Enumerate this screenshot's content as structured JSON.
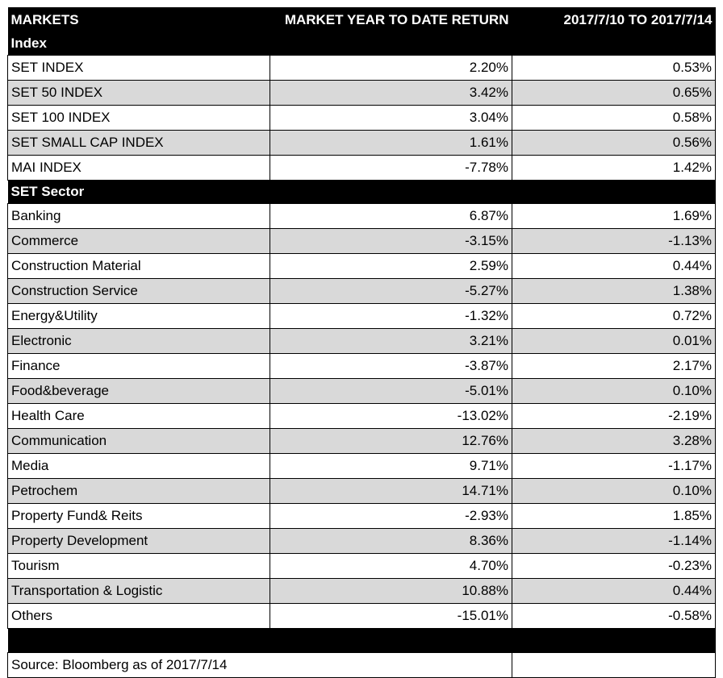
{
  "header": {
    "markets": "MARKETS",
    "ytd": "MARKET YEAR TO DATE RETURN",
    "week": "2017/7/10 TO 2017/7/14"
  },
  "sections": [
    {
      "title": "Index",
      "rows": [
        {
          "name": "SET INDEX",
          "ytd": "2.20%",
          "week": "0.53%"
        },
        {
          "name": "SET 50 INDEX",
          "ytd": "3.42%",
          "week": "0.65%"
        },
        {
          "name": "SET 100 INDEX",
          "ytd": "3.04%",
          "week": "0.58%"
        },
        {
          "name": "SET SMALL CAP INDEX",
          "ytd": "1.61%",
          "week": "0.56%"
        },
        {
          "name": "MAI INDEX",
          "ytd": "-7.78%",
          "week": "1.42%"
        }
      ]
    },
    {
      "title": "SET Sector",
      "rows": [
        {
          "name": "Banking",
          "ytd": "6.87%",
          "week": "1.69%"
        },
        {
          "name": "Commerce",
          "ytd": "-3.15%",
          "week": "-1.13%"
        },
        {
          "name": "Construction Material",
          "ytd": "2.59%",
          "week": "0.44%"
        },
        {
          "name": "Construction Service",
          "ytd": "-5.27%",
          "week": "1.38%"
        },
        {
          "name": "Energy&Utility",
          "ytd": "-1.32%",
          "week": "0.72%"
        },
        {
          "name": "Electronic",
          "ytd": "3.21%",
          "week": "0.01%"
        },
        {
          "name": "Finance",
          "ytd": "-3.87%",
          "week": "2.17%"
        },
        {
          "name": "Food&beverage",
          "ytd": "-5.01%",
          "week": "0.10%"
        },
        {
          "name": "Health Care",
          "ytd": "-13.02%",
          "week": "-2.19%"
        },
        {
          "name": "Communication",
          "ytd": "12.76%",
          "week": "3.28%"
        },
        {
          "name": "Media",
          "ytd": "9.71%",
          "week": "-1.17%"
        },
        {
          "name": "Petrochem",
          "ytd": "14.71%",
          "week": "0.10%"
        },
        {
          "name": "Property Fund& Reits",
          "ytd": "-2.93%",
          "week": "1.85%"
        },
        {
          "name": "Property Development",
          "ytd": "8.36%",
          "week": "-1.14%"
        },
        {
          "name": "Tourism",
          "ytd": "4.70%",
          "week": "-0.23%"
        },
        {
          "name": "Transportation & Logistic",
          "ytd": "10.88%",
          "week": "0.44%"
        },
        {
          "name": "Others",
          "ytd": "-15.01%",
          "week": "-0.58%"
        }
      ]
    }
  ],
  "footer": {
    "source": "Source: Bloomberg as of 2017/7/14"
  }
}
